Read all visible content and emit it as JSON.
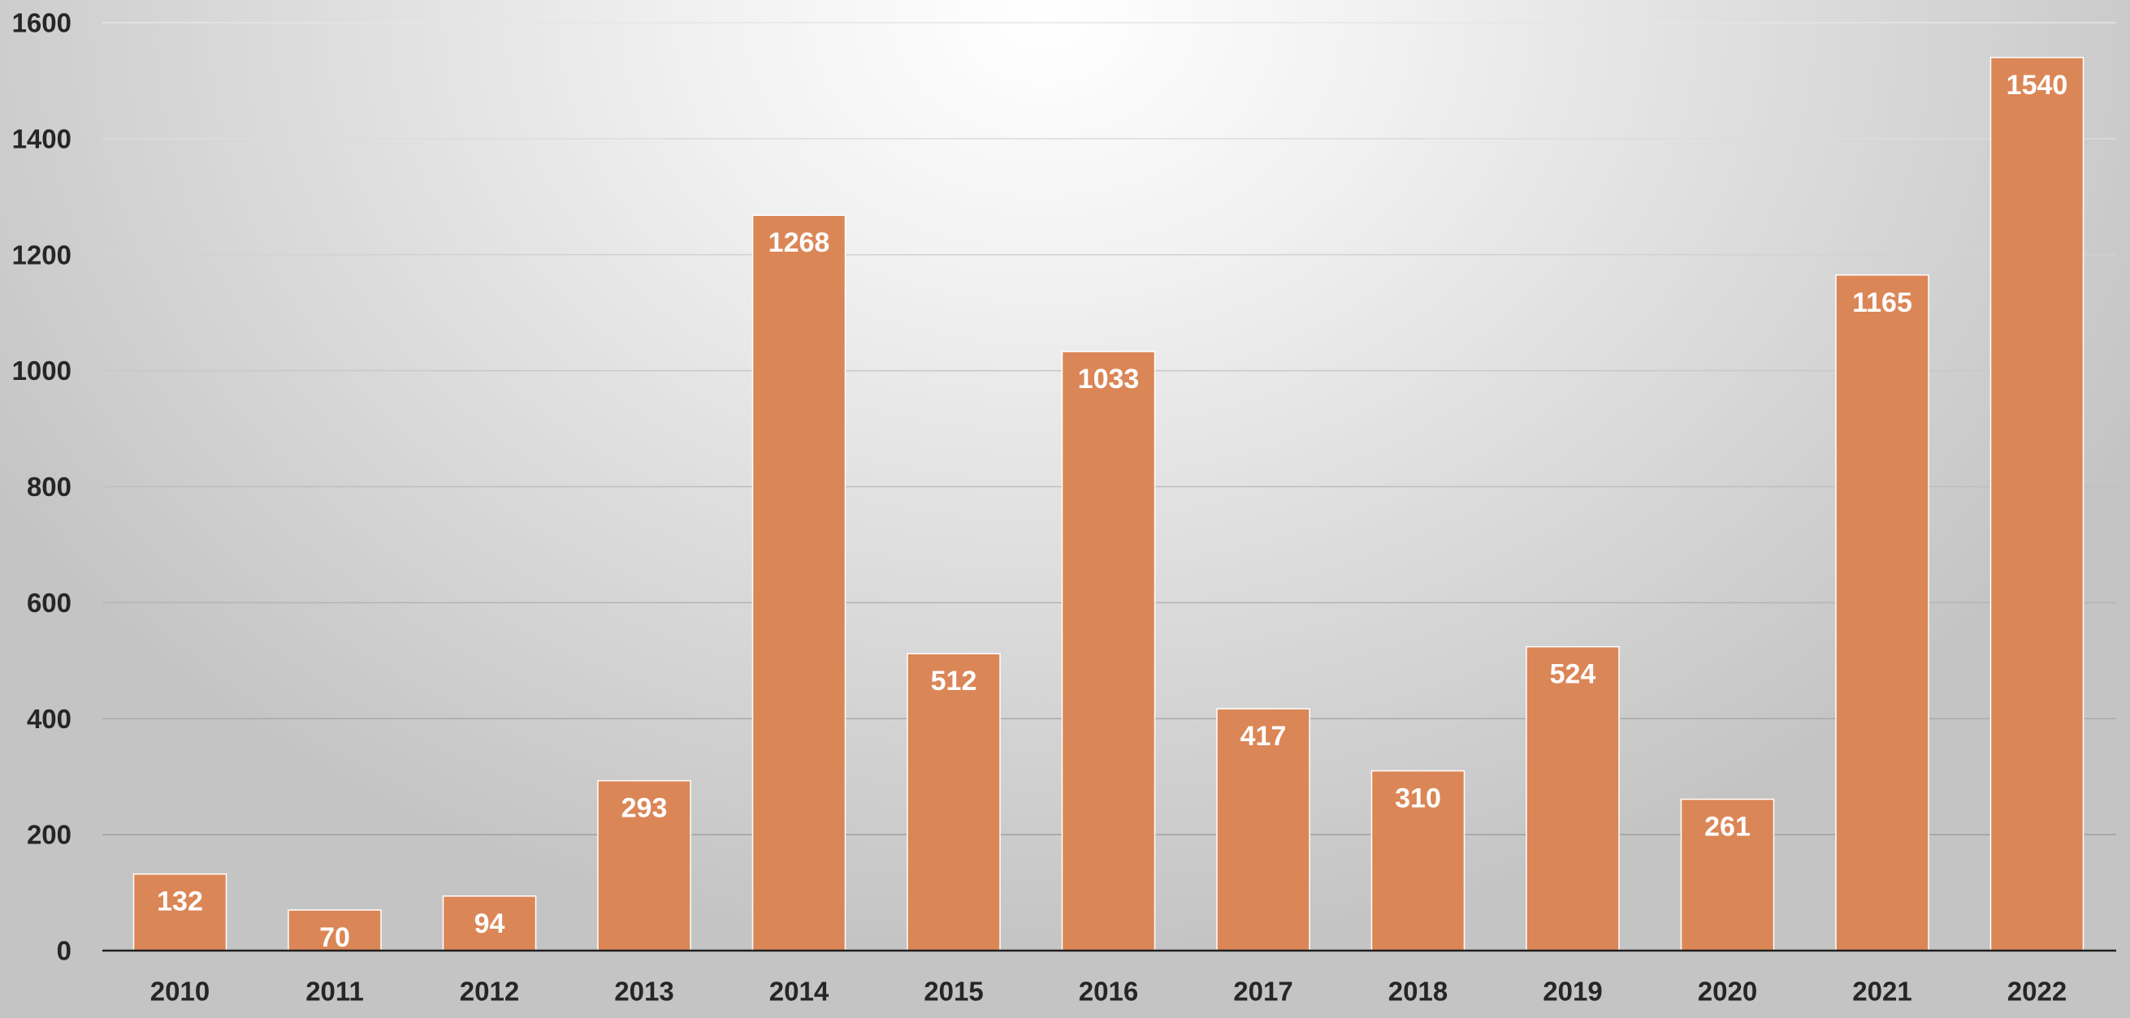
{
  "chart_data": {
    "type": "bar",
    "categories": [
      "2010",
      "2011",
      "2012",
      "2013",
      "2014",
      "2015",
      "2016",
      "2017",
      "2018",
      "2019",
      "2020",
      "2021",
      "2022"
    ],
    "values": [
      132,
      70,
      94,
      293,
      1268,
      512,
      1033,
      417,
      310,
      524,
      261,
      1165,
      1540
    ],
    "title": "",
    "xlabel": "",
    "ylabel": "",
    "ylim": [
      0,
      1600
    ],
    "yticks": [
      0,
      200,
      400,
      600,
      800,
      1000,
      1200,
      1400,
      1600
    ],
    "grid": true,
    "legend": "none",
    "bar_color": "#db8656",
    "bar_edge_color": "#ffffff",
    "data_label_color": "#ffffff"
  }
}
